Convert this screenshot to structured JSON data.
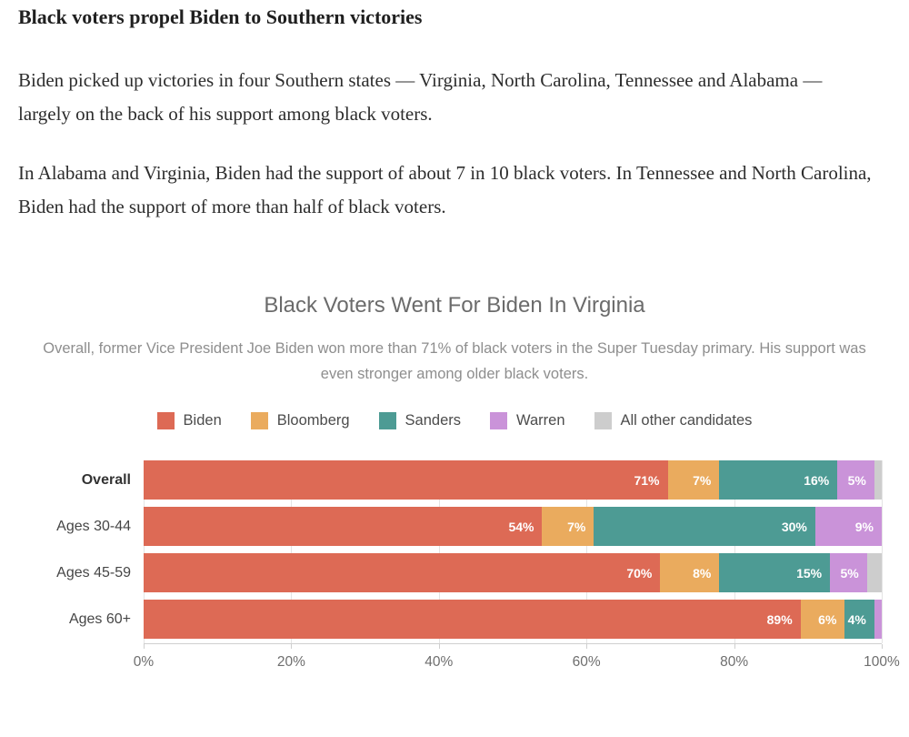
{
  "article": {
    "headline": "Black voters propel Biden to Southern victories",
    "paragraphs": [
      "Biden picked up victories in four Southern states — Virginia, North Carolina, Tennessee and Alabama — largely on the back of his support among black voters.",
      "In Alabama and Virginia, Biden had the support of about 7 in 10 black voters. In Tennessee and North Carolina, Biden had the support of more than half of black voters."
    ]
  },
  "chart_data": {
    "type": "bar",
    "orientation": "horizontal",
    "stacked": true,
    "title": "Black Voters Went For Biden In Virginia",
    "subtitle": "Overall, former Vice President Joe Biden won more than 71% of black voters in the Super Tuesday primary. His support was even stronger among older black voters.",
    "categories": [
      "Overall",
      "Ages 30-44",
      "Ages 45-59",
      "Ages 60+"
    ],
    "categories_bold": [
      true,
      false,
      false,
      false
    ],
    "series": [
      {
        "name": "Biden",
        "color": "#dd6a55",
        "values": [
          71,
          54,
          70,
          89
        ]
      },
      {
        "name": "Bloomberg",
        "color": "#eaab5e",
        "values": [
          7,
          7,
          8,
          6
        ]
      },
      {
        "name": "Sanders",
        "color": "#4d9b94",
        "values": [
          16,
          30,
          15,
          4
        ]
      },
      {
        "name": "Warren",
        "color": "#ca93d9",
        "values": [
          5,
          9,
          5,
          1
        ]
      },
      {
        "name": "All other candidates",
        "color": "#cdcdcd",
        "values": [
          1,
          0,
          2,
          0
        ]
      }
    ],
    "value_label_suffix": "%",
    "label_threshold": 4,
    "x_ticks": [
      "0%",
      "20%",
      "40%",
      "60%",
      "80%",
      "100%"
    ],
    "xlim": [
      0,
      100
    ],
    "legend_position": "top",
    "grid": true
  }
}
